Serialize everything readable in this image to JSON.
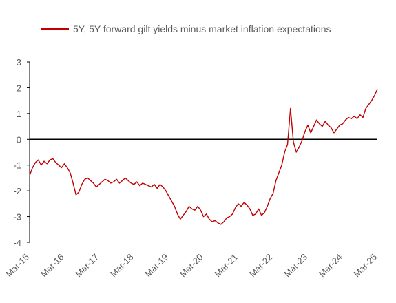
{
  "chart_data": {
    "type": "line",
    "title": "",
    "xlabel": "",
    "ylabel": "",
    "ylim": [
      -4,
      3
    ],
    "yticks": [
      "3",
      "2",
      "1",
      "0",
      "-1",
      "-2",
      "-3",
      "-4"
    ],
    "xlim": [
      "2015-03",
      "2025-03"
    ],
    "xticks": [
      "Mar-15",
      "Mar-16",
      "Mar-17",
      "Mar-18",
      "Mar-19",
      "Mar-20",
      "Mar-21",
      "Mar-22",
      "Mar-23",
      "Mar-24",
      "Mar-25"
    ],
    "zero_line": true,
    "grid": false,
    "legend_position": "top-right",
    "series": [
      {
        "name": "5Y, 5Y forward gilt yields minus market inflation expectations",
        "color": "#c00000",
        "x": [
          "2015-03",
          "2015-04",
          "2015-05",
          "2015-06",
          "2015-07",
          "2015-08",
          "2015-09",
          "2015-10",
          "2015-11",
          "2015-12",
          "2016-01",
          "2016-02",
          "2016-03",
          "2016-04",
          "2016-05",
          "2016-06",
          "2016-07",
          "2016-08",
          "2016-09",
          "2016-10",
          "2016-11",
          "2016-12",
          "2017-01",
          "2017-02",
          "2017-03",
          "2017-04",
          "2017-05",
          "2017-06",
          "2017-07",
          "2017-08",
          "2017-09",
          "2017-10",
          "2017-11",
          "2017-12",
          "2018-01",
          "2018-02",
          "2018-03",
          "2018-04",
          "2018-05",
          "2018-06",
          "2018-07",
          "2018-08",
          "2018-09",
          "2018-10",
          "2018-11",
          "2018-12",
          "2019-01",
          "2019-02",
          "2019-03",
          "2019-04",
          "2019-05",
          "2019-06",
          "2019-07",
          "2019-08",
          "2019-09",
          "2019-10",
          "2019-11",
          "2019-12",
          "2020-01",
          "2020-02",
          "2020-03",
          "2020-04",
          "2020-05",
          "2020-06",
          "2020-07",
          "2020-08",
          "2020-09",
          "2020-10",
          "2020-11",
          "2020-12",
          "2021-01",
          "2021-02",
          "2021-03",
          "2021-04",
          "2021-05",
          "2021-06",
          "2021-07",
          "2021-08",
          "2021-09",
          "2021-10",
          "2021-11",
          "2021-12",
          "2022-01",
          "2022-02",
          "2022-03",
          "2022-04",
          "2022-05",
          "2022-06",
          "2022-07",
          "2022-08",
          "2022-09",
          "2022-10",
          "2022-11",
          "2022-12",
          "2023-01",
          "2023-02",
          "2023-03",
          "2023-04",
          "2023-05",
          "2023-06",
          "2023-07",
          "2023-08",
          "2023-09",
          "2023-10",
          "2023-11",
          "2023-12",
          "2024-01",
          "2024-02",
          "2024-03",
          "2024-04",
          "2024-05",
          "2024-06",
          "2024-07",
          "2024-08",
          "2024-09",
          "2024-10",
          "2024-11",
          "2024-12",
          "2025-01",
          "2025-02",
          "2025-03"
        ],
        "values": [
          -1.4,
          -1.1,
          -0.9,
          -0.8,
          -1.0,
          -0.85,
          -0.95,
          -0.8,
          -0.75,
          -0.9,
          -1.0,
          -1.1,
          -0.95,
          -1.1,
          -1.3,
          -1.7,
          -2.15,
          -2.05,
          -1.75,
          -1.55,
          -1.5,
          -1.6,
          -1.7,
          -1.85,
          -1.75,
          -1.65,
          -1.55,
          -1.6,
          -1.7,
          -1.65,
          -1.55,
          -1.7,
          -1.6,
          -1.5,
          -1.6,
          -1.7,
          -1.75,
          -1.65,
          -1.8,
          -1.7,
          -1.75,
          -1.8,
          -1.85,
          -1.75,
          -1.9,
          -1.75,
          -1.85,
          -2.0,
          -2.2,
          -2.4,
          -2.6,
          -2.9,
          -3.1,
          -2.95,
          -2.8,
          -2.6,
          -2.7,
          -2.75,
          -2.6,
          -2.75,
          -3.0,
          -2.9,
          -3.1,
          -3.2,
          -3.15,
          -3.25,
          -3.3,
          -3.2,
          -3.05,
          -3.0,
          -2.9,
          -2.65,
          -2.5,
          -2.6,
          -2.45,
          -2.55,
          -2.7,
          -2.95,
          -2.9,
          -2.7,
          -2.95,
          -2.85,
          -2.6,
          -2.3,
          -2.1,
          -1.6,
          -1.3,
          -1.0,
          -0.5,
          -0.2,
          1.2,
          -0.1,
          -0.5,
          -0.3,
          -0.05,
          0.3,
          0.55,
          0.25,
          0.5,
          0.75,
          0.6,
          0.5,
          0.7,
          0.55,
          0.45,
          0.25,
          0.4,
          0.55,
          0.6,
          0.75,
          0.85,
          0.8,
          0.9,
          0.8,
          0.95,
          0.85,
          1.2,
          1.35,
          1.5,
          1.7,
          1.95
        ]
      }
    ]
  }
}
